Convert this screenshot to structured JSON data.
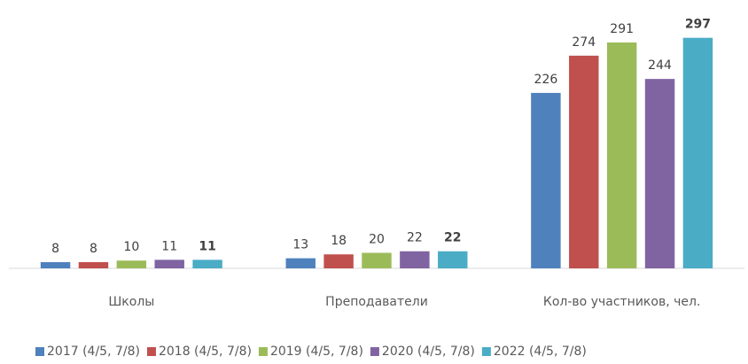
{
  "chart_data": {
    "type": "bar",
    "categories": [
      "Школы",
      "Преподаватели",
      "Кол-во участников,  чел."
    ],
    "series": [
      {
        "name": "2017 (4/5, 7/8)",
        "color": "#4f81bd",
        "values": [
          8,
          13,
          226
        ]
      },
      {
        "name": "2018 (4/5, 7/8)",
        "color": "#c0504d",
        "values": [
          8,
          18,
          274
        ]
      },
      {
        "name": "2019 (4/5, 7/8)",
        "color": "#9bbb59",
        "values": [
          10,
          20,
          291
        ]
      },
      {
        "name": "2020 (4/5, 7/8)",
        "color": "#8064a2",
        "values": [
          11,
          22,
          244
        ]
      },
      {
        "name": "2022 (4/5, 7/8)",
        "color": "#4bacc6",
        "values": [
          11,
          22,
          297
        ]
      }
    ],
    "ylim": [
      0,
      340
    ],
    "legend": "bottom"
  }
}
